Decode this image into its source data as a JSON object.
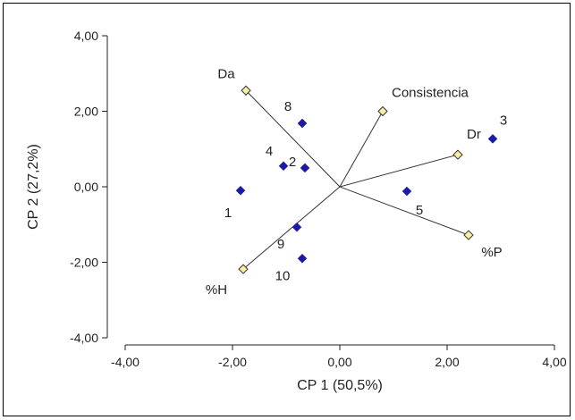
{
  "chart_data": {
    "type": "scatter",
    "subtype": "biplot",
    "title": "",
    "xlabel": "CP 1 (50,5%)",
    "ylabel": "CP 2 (27,2%)",
    "xlim": [
      -4,
      4
    ],
    "ylim": [
      -4,
      4
    ],
    "xticks": [
      "-4,00",
      "-2,00",
      "0,00",
      "2,00",
      "4,00"
    ],
    "yticks": [
      "4,00",
      "2,00",
      "0,00",
      "-2,00",
      "-4,00"
    ],
    "xtick_values": [
      -4,
      -2,
      0,
      2,
      4
    ],
    "ytick_values": [
      4,
      2,
      0,
      -2,
      -4
    ],
    "grid": false,
    "observations": {
      "marker": "diamond",
      "color": "#1a1aa6",
      "points": [
        {
          "label": "1",
          "x": -1.85,
          "y": -0.1
        },
        {
          "label": "2",
          "x": -0.65,
          "y": 0.5
        },
        {
          "label": "3",
          "x": 2.85,
          "y": 1.27
        },
        {
          "label": "4",
          "x": -1.05,
          "y": 0.55
        },
        {
          "label": "5",
          "x": 1.25,
          "y": -0.12
        },
        {
          "label": "8",
          "x": -0.7,
          "y": 1.68
        },
        {
          "label": "9",
          "x": -0.8,
          "y": -1.07
        },
        {
          "label": "10",
          "x": -0.7,
          "y": -1.9
        }
      ]
    },
    "variables": {
      "marker": "diamond",
      "color": "#f5f0a0",
      "stroke": "#333333",
      "vectors": [
        {
          "label": "Da",
          "x": -1.75,
          "y": 2.55
        },
        {
          "label": "Consistencia",
          "x": 0.8,
          "y": 2.0
        },
        {
          "label": "Dr",
          "x": 2.2,
          "y": 0.85
        },
        {
          "label": "%P",
          "x": 2.4,
          "y": -1.28
        },
        {
          "label": "%H",
          "x": -1.8,
          "y": -2.18
        }
      ]
    }
  }
}
